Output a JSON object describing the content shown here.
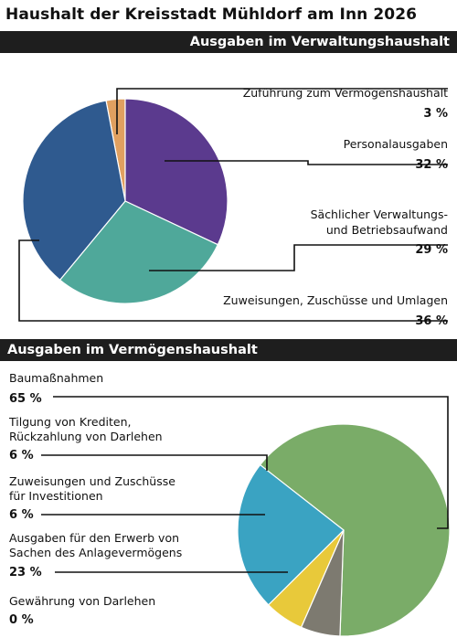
{
  "title": "Haushalt der Kreisstadt Mühldorf am Inn 2026",
  "colors": {
    "band_bg": "#1e1e1e",
    "orange": "#e0a060",
    "purple": "#5b3a8e",
    "teal": "#4fa89a",
    "blue": "#2f5a8f",
    "green": "#7aac68",
    "gray": "#7d7a70",
    "yellow": "#e8c93a",
    "lightblue": "#3aa3c2"
  },
  "chart_data": [
    {
      "type": "pie",
      "title": "Ausgaben im Verwaltungshaushalt",
      "slices": [
        {
          "label": [
            "Zuführung zum Vermögenshaushalt"
          ],
          "value": 3,
          "value_label": "3 %",
          "color": "#e0a060"
        },
        {
          "label": [
            "Personalausgaben"
          ],
          "value": 32,
          "value_label": "32 %",
          "color": "#5b3a8e"
        },
        {
          "label": [
            "Sächlicher Verwaltungs-",
            "und Betriebsaufwand"
          ],
          "value": 29,
          "value_label": "29 %",
          "color": "#4fa89a"
        },
        {
          "label": [
            "Zuweisungen, Zuschüsse und Umlagen"
          ],
          "value": 36,
          "value_label": "36 %",
          "color": "#2f5a8f"
        }
      ]
    },
    {
      "type": "pie",
      "title": "Ausgaben im Vermögenshaushalt",
      "slices": [
        {
          "label": [
            "Baumaßnahmen"
          ],
          "value": 65,
          "value_label": "65 %",
          "color": "#7aac68"
        },
        {
          "label": [
            "Tilgung von Krediten,",
            "Rückzahlung von Darlehen"
          ],
          "value": 6,
          "value_label": "6 %",
          "color": "#7d7a70"
        },
        {
          "label": [
            "Zuweisungen und Zuschüsse",
            "für Investitionen"
          ],
          "value": 6,
          "value_label": "6 %",
          "color": "#e8c93a"
        },
        {
          "label": [
            "Ausgaben für den Erwerb von",
            "Sachen des Anlagevermögens"
          ],
          "value": 23,
          "value_label": "23 %",
          "color": "#3aa3c2"
        },
        {
          "label": [
            "Gewährung von Darlehen"
          ],
          "value": 0,
          "value_label": "0 %",
          "color": "#999999"
        }
      ]
    }
  ]
}
